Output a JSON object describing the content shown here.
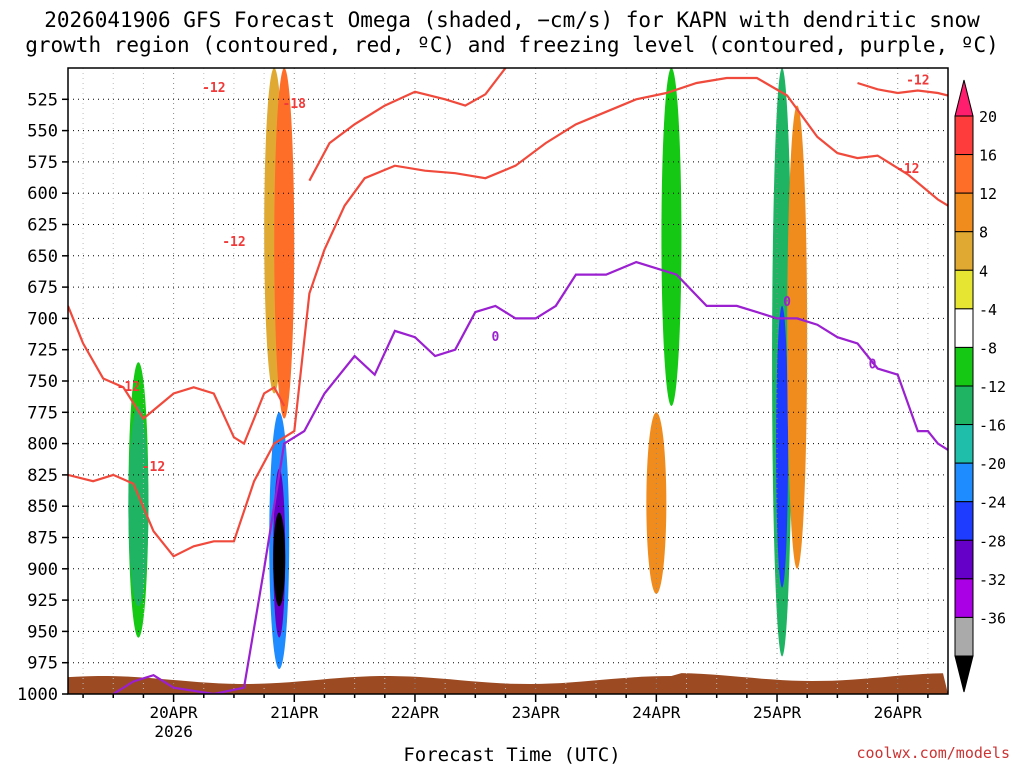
{
  "title_line1": "2026041906 GFS Forecast Omega (shaded, −cm/s) for KAPN with dendritic snow",
  "title_line2": "growth region (contoured, red, ºC) and freezing level (contoured, purple, ºC)",
  "footer": "coolwx.com/models",
  "chart_data": {
    "type": "heatmap",
    "title": "2026041906 GFS Forecast Omega (shaded, −cm/s) for KAPN with dendritic snow growth region (contoured, red, ºC) and freezing level (contoured, purple, ºC)",
    "xlabel": "Forecast Time (UTC)",
    "ylabel": "Pressure (hPa)",
    "ylim": [
      1000,
      500
    ],
    "xlim_hours": [
      -21,
      154
    ],
    "x_ticks": [
      {
        "label": "20APR",
        "sub": "2026",
        "hour": 0
      },
      {
        "label": "21APR",
        "sub": "",
        "hour": 24
      },
      {
        "label": "22APR",
        "sub": "",
        "hour": 48
      },
      {
        "label": "23APR",
        "sub": "",
        "hour": 72
      },
      {
        "label": "24APR",
        "sub": "",
        "hour": 96
      },
      {
        "label": "25APR",
        "sub": "",
        "hour": 120
      },
      {
        "label": "26APR",
        "sub": "",
        "hour": 144
      }
    ],
    "y_ticks": [
      525,
      550,
      575,
      600,
      625,
      650,
      675,
      700,
      725,
      750,
      775,
      800,
      825,
      850,
      875,
      900,
      925,
      950,
      975,
      1000
    ],
    "colorbar": {
      "labels": [
        "20",
        "16",
        "12",
        "8",
        "4",
        "-4",
        "-8",
        "-12",
        "-16",
        "-20",
        "-24",
        "-28",
        "-32",
        "-36"
      ],
      "colors": [
        "#ff1e6e",
        "#ff3c3c",
        "#ff6e28",
        "#f08c1e",
        "#e0aa32",
        "#e6e632",
        "#ffffff",
        "#14c814",
        "#1eb464",
        "#1ebeaa",
        "#1e8cff",
        "#1e3cff",
        "#6400c8",
        "#aa00e6",
        "#aaaaaa",
        "#000000"
      ]
    },
    "contour_labels": [
      {
        "text": "-18",
        "series": "dgz"
      },
      {
        "text": "-12",
        "series": "dgz"
      },
      {
        "text": "0",
        "series": "freezing"
      }
    ],
    "series": [
      {
        "name": "-18 C isotherm upper",
        "color": "#f04a3c",
        "x": [
          27,
          31,
          36,
          42,
          48,
          54,
          58,
          62,
          66
        ],
        "y": [
          590,
          560,
          545,
          530,
          519,
          525,
          530,
          521,
          500
        ]
      },
      {
        "name": "-18 C isotherm lower",
        "color": "#f04a3c",
        "x": [
          -21,
          -18,
          -14,
          -10,
          -6,
          0,
          4,
          8,
          12,
          14,
          16,
          18,
          20,
          22
        ],
        "y": [
          690,
          720,
          748,
          755,
          780,
          760,
          755,
          760,
          795,
          800,
          780,
          760,
          755,
          770
        ]
      },
      {
        "name": "-12 C isotherm",
        "color": "#f04a3c",
        "x": [
          -21,
          -16,
          -12,
          -8,
          -4,
          0,
          4,
          8,
          12,
          16,
          20,
          24,
          27,
          30,
          34,
          38,
          44,
          50,
          56,
          62,
          68,
          74,
          80,
          86,
          92,
          98,
          104,
          110,
          116,
          122,
          128,
          132,
          136,
          140,
          146,
          152,
          154
        ],
        "y": [
          825,
          830,
          825,
          832,
          870,
          890,
          882,
          878,
          878,
          830,
          800,
          790,
          680,
          645,
          610,
          588,
          578,
          582,
          584,
          588,
          578,
          560,
          545,
          535,
          525,
          520,
          512,
          508,
          508,
          522,
          555,
          568,
          572,
          570,
          585,
          605,
          610
        ]
      },
      {
        "name": "-18 C isotherm right",
        "color": "#f04a3c",
        "x": [
          136,
          140,
          144,
          148,
          152,
          154
        ],
        "y": [
          512,
          517,
          520,
          518,
          520,
          522
        ]
      },
      {
        "name": "freezing level (0 C)",
        "color": "#9a20d0",
        "x": [
          -12,
          -8,
          -4,
          0,
          8,
          14,
          18,
          22,
          26,
          30,
          36,
          40,
          44,
          48,
          52,
          56,
          60,
          64,
          68,
          72,
          76,
          80,
          86,
          92,
          96,
          100,
          106,
          112,
          116,
          120,
          124,
          128,
          132,
          136,
          140,
          144,
          148,
          150,
          152,
          154
        ],
        "y": [
          1000,
          990,
          985,
          995,
          1000,
          995,
          900,
          800,
          790,
          760,
          730,
          745,
          710,
          715,
          730,
          725,
          695,
          690,
          700,
          700,
          690,
          665,
          665,
          655,
          660,
          665,
          690,
          690,
          695,
          700,
          700,
          705,
          715,
          720,
          740,
          745,
          790,
          790,
          800,
          805
        ]
      }
    ],
    "shaded_regions": [
      {
        "center_hour": -7,
        "pmin": 735,
        "pmax": 955,
        "value": -10
      },
      {
        "center_hour": -7,
        "pmin": 770,
        "pmax": 930,
        "value": -13
      },
      {
        "center_hour": 20,
        "pmin": 500,
        "pmax": 760,
        "value": 6
      },
      {
        "center_hour": 22,
        "pmin": 500,
        "pmax": 780,
        "value": 16
      },
      {
        "center_hour": 21,
        "pmin": 775,
        "pmax": 980,
        "value": -20
      },
      {
        "center_hour": 21,
        "pmin": 820,
        "pmax": 955,
        "value": -30
      },
      {
        "center_hour": 21,
        "pmin": 855,
        "pmax": 930,
        "value": -36
      },
      {
        "center_hour": 26,
        "pmin": 540,
        "pmax": 700,
        "value": -6
      },
      {
        "center_hour": 99,
        "pmin": 500,
        "pmax": 770,
        "value": -10
      },
      {
        "center_hour": 96,
        "pmin": 775,
        "pmax": 920,
        "value": 9
      },
      {
        "center_hour": 121,
        "pmin": 500,
        "pmax": 970,
        "value": -14
      },
      {
        "center_hour": 121,
        "pmin": 690,
        "pmax": 915,
        "value": -26
      },
      {
        "center_hour": 124,
        "pmin": 530,
        "pmax": 900,
        "value": 10
      },
      {
        "center_hour": 134,
        "pmin": 660,
        "pmax": 920,
        "value": -6
      }
    ]
  }
}
